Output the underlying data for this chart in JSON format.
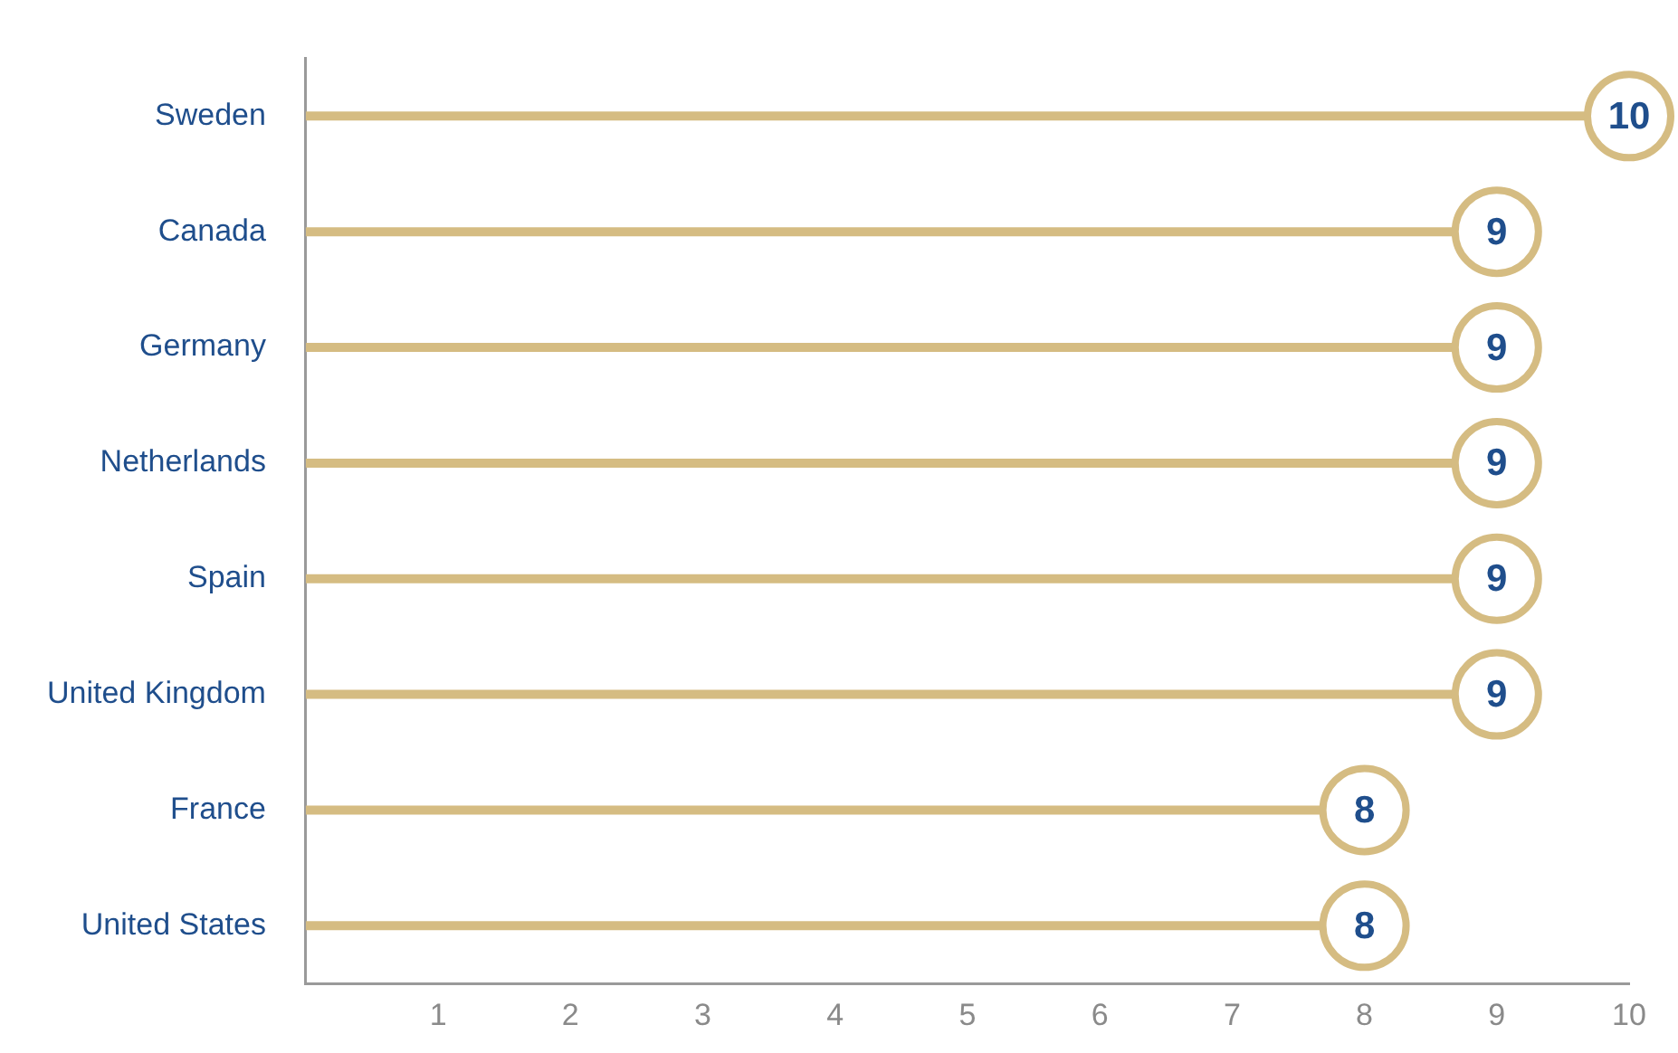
{
  "chart_data": {
    "type": "lollipop",
    "orientation": "horizontal",
    "categories": [
      "Sweden",
      "Canada",
      "Germany",
      "Netherlands",
      "Spain",
      "United Kingdom",
      "France",
      "United States"
    ],
    "values": [
      10,
      9,
      9,
      9,
      9,
      9,
      8,
      8
    ],
    "color": "#d5bc82",
    "data_labels": true,
    "marker": "circle",
    "grid": false,
    "legend": false,
    "xlim": [
      0,
      10
    ],
    "xticks": [
      1,
      2,
      3,
      4,
      5,
      6,
      7,
      8,
      9,
      10
    ]
  }
}
